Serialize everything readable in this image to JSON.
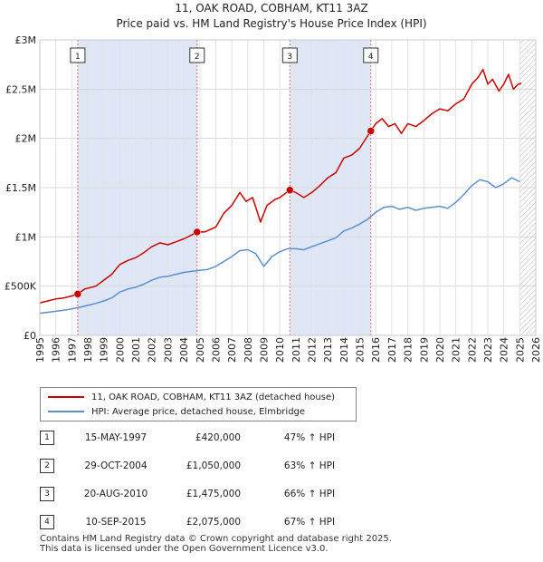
{
  "title_line1": "11, OAK ROAD, COBHAM, KT11 3AZ",
  "title_line2": "Price paid vs. HM Land Registry's House Price Index (HPI)",
  "chart_data": {
    "type": "line",
    "title": "Price paid vs. HM Land Registry's House Price Index (HPI)",
    "xlim": [
      1995,
      2026
    ],
    "ylim": [
      0,
      3000000
    ],
    "x_ticks": [
      "1995",
      "1996",
      "1997",
      "1998",
      "1999",
      "2000",
      "2001",
      "2002",
      "2003",
      "2004",
      "2005",
      "2006",
      "2007",
      "2008",
      "2009",
      "2010",
      "2011",
      "2012",
      "2013",
      "2014",
      "2015",
      "2016",
      "2017",
      "2018",
      "2019",
      "2020",
      "2021",
      "2022",
      "2023",
      "2024",
      "2025",
      "2026"
    ],
    "y_ticks": [
      {
        "value": 0,
        "label": "£0"
      },
      {
        "value": 500000,
        "label": "£500K"
      },
      {
        "value": 1000000,
        "label": "£1M"
      },
      {
        "value": 1500000,
        "label": "£1.5M"
      },
      {
        "value": 2000000,
        "label": "£2M"
      },
      {
        "value": 2500000,
        "label": "£2.5M"
      },
      {
        "value": 3000000,
        "label": "£3M"
      }
    ],
    "series": [
      {
        "name": "11, OAK ROAD, COBHAM, KT11 3AZ (detached house)",
        "color": "#cc0000",
        "x": [
          1995.0,
          1995.5,
          1996.0,
          1996.5,
          1997.0,
          1997.37,
          1997.8,
          1998.5,
          1999.0,
          1999.5,
          2000.0,
          2000.5,
          2001.0,
          2001.5,
          2002.0,
          2002.5,
          2003.0,
          2003.5,
          2004.0,
          2004.5,
          2004.83,
          2005.3,
          2006.0,
          2006.5,
          2007.0,
          2007.5,
          2007.9,
          2008.3,
          2008.8,
          2009.2,
          2009.7,
          2010.0,
          2010.63,
          2011.0,
          2011.5,
          2012.0,
          2012.5,
          2013.0,
          2013.5,
          2014.0,
          2014.5,
          2015.0,
          2015.69,
          2016.0,
          2016.4,
          2016.8,
          2017.2,
          2017.6,
          2018.0,
          2018.5,
          2019.0,
          2019.5,
          2020.0,
          2020.5,
          2021.0,
          2021.5,
          2022.0,
          2022.4,
          2022.7,
          2023.0,
          2023.3,
          2023.7,
          2024.0,
          2024.3,
          2024.6,
          2024.9,
          2025.1
        ],
        "values": [
          330000,
          350000,
          370000,
          380000,
          400000,
          420000,
          470000,
          500000,
          560000,
          620000,
          720000,
          760000,
          790000,
          840000,
          900000,
          940000,
          920000,
          950000,
          980000,
          1020000,
          1050000,
          1050000,
          1100000,
          1240000,
          1320000,
          1450000,
          1360000,
          1400000,
          1150000,
          1320000,
          1380000,
          1400000,
          1475000,
          1450000,
          1400000,
          1450000,
          1520000,
          1600000,
          1650000,
          1800000,
          1830000,
          1900000,
          2075000,
          2150000,
          2200000,
          2120000,
          2150000,
          2050000,
          2150000,
          2120000,
          2180000,
          2250000,
          2300000,
          2280000,
          2350000,
          2400000,
          2550000,
          2620000,
          2700000,
          2550000,
          2600000,
          2480000,
          2550000,
          2650000,
          2500000,
          2550000,
          2560000
        ]
      },
      {
        "name": "HPI: Average price, detached house, Elmbridge",
        "color": "#5a8fd0",
        "x": [
          1995.0,
          1995.5,
          1996.0,
          1996.5,
          1997.0,
          1997.5,
          1998.0,
          1998.5,
          1999.0,
          1999.5,
          2000.0,
          2000.5,
          2001.0,
          2001.5,
          2002.0,
          2002.5,
          2003.0,
          2003.5,
          2004.0,
          2004.5,
          2005.0,
          2005.5,
          2006.0,
          2006.5,
          2007.0,
          2007.5,
          2008.0,
          2008.5,
          2009.0,
          2009.5,
          2010.0,
          2010.5,
          2011.0,
          2011.5,
          2012.0,
          2012.5,
          2013.0,
          2013.5,
          2014.0,
          2014.5,
          2015.0,
          2015.5,
          2016.0,
          2016.5,
          2017.0,
          2017.5,
          2018.0,
          2018.5,
          2019.0,
          2019.5,
          2020.0,
          2020.5,
          2021.0,
          2021.5,
          2022.0,
          2022.5,
          2023.0,
          2023.5,
          2024.0,
          2024.5,
          2025.0
        ],
        "values": [
          225000,
          235000,
          245000,
          255000,
          270000,
          285000,
          305000,
          325000,
          350000,
          380000,
          440000,
          470000,
          490000,
          520000,
          560000,
          590000,
          600000,
          620000,
          640000,
          650000,
          660000,
          670000,
          700000,
          750000,
          800000,
          860000,
          870000,
          830000,
          700000,
          800000,
          850000,
          880000,
          880000,
          870000,
          900000,
          930000,
          960000,
          990000,
          1060000,
          1090000,
          1130000,
          1180000,
          1250000,
          1300000,
          1310000,
          1280000,
          1300000,
          1270000,
          1290000,
          1300000,
          1310000,
          1290000,
          1350000,
          1430000,
          1520000,
          1580000,
          1560000,
          1500000,
          1540000,
          1600000,
          1560000
        ]
      }
    ],
    "sales": [
      {
        "label": "1",
        "x": 1997.37,
        "value": 420000
      },
      {
        "label": "2",
        "x": 2004.83,
        "value": 1050000
      },
      {
        "label": "3",
        "x": 2010.63,
        "value": 1475000
      },
      {
        "label": "4",
        "x": 2015.69,
        "value": 2075000
      }
    ],
    "shade_regions": [
      [
        1997.37,
        2004.83
      ],
      [
        2010.63,
        2015.69
      ]
    ],
    "hatch_from": 2025.0,
    "grid": true
  },
  "legend": [
    {
      "label": "11, OAK ROAD, COBHAM, KT11 3AZ (detached house)",
      "color": "#cc0000"
    },
    {
      "label": "HPI: Average price, detached house, Elmbridge",
      "color": "#5a8fd0"
    }
  ],
  "sales_table": [
    {
      "num": "1",
      "date": "15-MAY-1997",
      "price": "£420,000",
      "hpi": "47% ↑ HPI"
    },
    {
      "num": "2",
      "date": "29-OCT-2004",
      "price": "£1,050,000",
      "hpi": "63% ↑ HPI"
    },
    {
      "num": "3",
      "date": "20-AUG-2010",
      "price": "£1,475,000",
      "hpi": "66% ↑ HPI"
    },
    {
      "num": "4",
      "date": "10-SEP-2015",
      "price": "£2,075,000",
      "hpi": "67% ↑ HPI"
    }
  ],
  "footer_line1": "Contains HM Land Registry data © Crown copyright and database right 2025.",
  "footer_line2": "This data is licensed under the Open Government Licence v3.0."
}
